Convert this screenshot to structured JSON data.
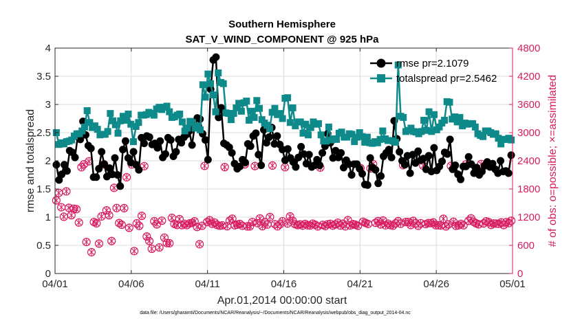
{
  "chart_data": {
    "type": "line",
    "title": "Southern Hemisphere",
    "subtitle": "SAT_V_WIND_COMPONENT @ 925 hPa",
    "xlabel": "Apr.01,2014 00:00:00 start",
    "ylabel": "rmse and totalspread",
    "ylabel_right": "# of obs: o=possible; ×=assimilated",
    "footnote": "data file: /Users/gharamti/Documents/NCAR/Reanalysis/~/Documents/NCAR/Reanalysis/webpub/obs_diag_output_2014-04.nc",
    "x_range_days": [
      0,
      30
    ],
    "x_ticks": [
      0,
      5,
      10,
      15,
      20,
      25,
      30
    ],
    "x_tick_labels": [
      "04/01",
      "04/06",
      "04/11",
      "04/16",
      "04/21",
      "04/26",
      "05/01"
    ],
    "ylim": [
      0,
      4
    ],
    "y_ticks": [
      0,
      0.5,
      1,
      1.5,
      2,
      2.5,
      3,
      3.5,
      4
    ],
    "y_tick_labels": [
      "0",
      "0.5",
      "1",
      "1.5",
      "2",
      "2.5",
      "3",
      "3.5",
      "4"
    ],
    "ylim_right": [
      0,
      4800
    ],
    "y_ticks_right": [
      0,
      600,
      1200,
      1800,
      2400,
      3000,
      3600,
      4200,
      4800
    ],
    "y_tick_labels_right": [
      "0",
      "600",
      "1200",
      "1800",
      "2400",
      "3000",
      "3600",
      "4200",
      "4800"
    ],
    "grid": true,
    "legend_position": "top-right",
    "series": [
      {
        "name": "rmse pr=2.1079",
        "color": "#000000",
        "marker": "circle",
        "axis": "left",
        "values": [
          1.93,
          1.66,
          1.76,
          1.93,
          1.82,
          2.18,
          2.15,
          2.06,
          2.43,
          2.38,
          2.7,
          2.46,
          2.27,
          2.22,
          1.71,
          1.71,
          1.86,
          2.16,
          1.94,
          1.72,
          1.87,
          1.76,
          2.05,
          1.75,
          1.55,
          2.2,
          2.35,
          2.05,
          1.97,
          2.16,
          1.93,
          1.84,
          2.41,
          2.31,
          2.44,
          2.42,
          2.29,
          2.31,
          2.23,
          2.35,
          2.06,
          2.12,
          2.41,
          2.37,
          2.08,
          2.16,
          2.38,
          2.32,
          2.42,
          2.47,
          2.53,
          2.28,
          2.61,
          2.76,
          2.74,
          2.48,
          2.37,
          2.02,
          3.27,
          3.79,
          3.84,
          2.77,
          2.94,
          2.31,
          2.28,
          2.24,
          2.14,
          1.95,
          1.86,
          1.9,
          2.02,
          1.97,
          2.3,
          2.26,
          2.44,
          2.49,
          2.11,
          1.92,
          2.55,
          2.32,
          2.42,
          2.59,
          2.3,
          2.44,
          2.29,
          2.2,
          2.01,
          2.21,
          2.05,
          1.98,
          1.89,
          2.06,
          2.25,
          2.12,
          1.95,
          2.11,
          1.89,
          1.92,
          2.02,
          1.92,
          2.14,
          2.26,
          2.48,
          2.32,
          2.05,
          2.18,
          2.06,
          2.14,
          1.88,
          2.01,
          1.94,
          1.75,
          1.94,
          1.94,
          1.86,
          1.77,
          1.58,
          1.57,
          2.05,
          1.88,
          1.84,
          1.6,
          1.73,
          2.08,
          2.14,
          2.2,
          2.06,
          2.71,
          2.39,
          2.16,
          2.0,
          1.93,
          2.09,
          1.78,
          2.11,
          1.96,
          2.17,
          2.01,
          2.04,
          1.85,
          2.09,
          1.81,
          2.23,
          1.83,
          1.9,
          1.99,
          2.15,
          2.12,
          2.38,
          1.85,
          1.92,
          1.76,
          1.67,
          1.9,
          1.9,
          2.07,
          1.94,
          1.78,
          1.88,
          1.75,
          1.81,
          1.91,
          1.98,
          1.89,
          1.95,
          1.85,
          1.78,
          2.0,
          1.81,
          1.82,
          1.78,
          2.1
        ]
      },
      {
        "name": "totalspread pr=2.5462",
        "color": "#0f8a8a",
        "marker": "square",
        "axis": "left",
        "values": [
          2.5,
          2.29,
          2.32,
          2.3,
          2.34,
          2.35,
          2.37,
          2.44,
          2.48,
          2.48,
          2.53,
          2.6,
          2.89,
          2.68,
          2.59,
          2.62,
          2.56,
          2.46,
          2.47,
          2.47,
          2.52,
          2.84,
          2.71,
          2.64,
          2.49,
          2.71,
          2.79,
          2.72,
          2.83,
          2.65,
          2.34,
          2.61,
          2.68,
          2.81,
          2.81,
          2.82,
          2.86,
          2.84,
          2.81,
          2.92,
          2.95,
          2.91,
          2.95,
          2.97,
          2.87,
          2.77,
          2.78,
          2.81,
          2.83,
          2.69,
          2.53,
          2.58,
          2.7,
          2.68,
          2.58,
          2.62,
          2.55,
          3.35,
          3.13,
          3.54,
          3.37,
          3.17,
          2.87,
          3.56,
          3.39,
          3.37,
          2.85,
          2.84,
          2.73,
          2.84,
          2.94,
          3.02,
          2.88,
          3.03,
          3.06,
          2.72,
          2.88,
          2.77,
          3.07,
          2.93,
          2.73,
          2.67,
          2.63,
          2.57,
          2.86,
          2.93,
          2.82,
          2.84,
          2.75,
          3.11,
          3.12,
          2.68,
          2.94,
          2.62,
          2.69,
          2.69,
          2.49,
          2.65,
          2.46,
          2.59,
          2.69,
          2.65,
          2.66,
          2.46,
          2.35,
          2.35,
          2.6,
          2.37,
          2.39,
          2.38,
          2.49,
          2.51,
          2.42,
          2.42,
          2.48,
          2.47,
          2.34,
          2.42,
          2.5,
          2.43,
          2.33,
          2.42,
          2.32,
          2.31,
          2.34,
          2.32,
          2.38,
          2.53,
          2.39,
          2.36,
          2.36,
          2.35,
          2.33,
          3.7,
          2.79,
          2.77,
          2.52,
          2.54,
          2.58,
          2.52,
          2.51,
          2.48,
          2.52,
          2.72,
          2.54,
          2.87,
          2.52,
          2.82,
          2.55,
          2.6,
          2.67,
          2.72,
          3.05,
          3.04,
          2.74,
          2.78,
          2.69,
          2.77,
          2.62,
          2.67,
          2.65,
          2.66,
          2.66,
          2.6,
          2.48,
          2.45,
          2.43,
          2.53,
          2.53,
          2.5,
          2.47,
          2.48,
          2.4,
          2.3,
          2.38,
          2.38,
          2.4,
          2.37
        ]
      },
      {
        "name": "possible",
        "color": "#d81b60",
        "marker": "circle-open",
        "axis": "right",
        "values": [
          1557,
          1716,
          1411,
          1209,
          1750,
          1399,
          1241,
          1380,
          1371,
          1086,
          2263,
          2326,
          671,
          2390,
          454,
          1096,
          1070,
          637,
          1216,
          2325,
          1345,
          1241,
          692,
          1824,
          1395,
          1074,
          1039,
          1392,
          2049,
          973,
          2322,
          478,
          1068,
          1014,
          1227,
          2286,
          788,
          692,
          526,
          1112,
          1046,
          555,
          1124,
          764,
          648,
          644,
          1185,
          1056,
          1034,
          1158,
          1029,
          1058,
          1031,
          1067,
          1078,
          1111,
          991,
          624,
          1016,
          2291,
          1097,
          1134,
          1059,
          1086,
          1034,
          1018,
          1025,
          2266,
          1007,
          1126,
          1167,
          1028,
          1041,
          1055,
          1018,
          2325,
          1004,
          1004,
          1097,
          2288,
          1072,
          1173,
          1007,
          1094,
          1043,
          1204,
          2299,
          1051,
          1005,
          1049,
          1113,
          2264,
          1065,
          1216,
          1124,
          1051,
          1030,
          1047,
          1019,
          1056,
          1027,
          1023,
          1062,
          1040,
          1004,
          2256,
          1035,
          1010,
          1049,
          1058,
          1020,
          1046,
          1082,
          1022,
          1061,
          1005,
          1136,
          1024,
          1052,
          1039,
          1017,
          2245,
          1102,
          1078,
          1054,
          2239,
          2332,
          1080,
          1116,
          1046,
          1129,
          1027,
          1062,
          1029,
          1019,
          1068,
          1114,
          1060,
          2307,
          1096,
          1097,
          1033,
          1121,
          1069,
          1017,
          1070,
          2294,
          1052,
          1075,
          1073,
          1088,
          1028,
          1028,
          1023,
          1165,
          1004,
          1047,
          2292,
          1101,
          1016,
          1026,
          1058,
          1027,
          2326,
          1121,
          1175,
          1102,
          1068,
          1048,
          2330,
          1066,
          1111,
          1095,
          1035,
          1065,
          1063,
          1058,
          1088,
          1030,
          1092,
          1072,
          1124
        ]
      },
      {
        "name": "assimilated",
        "color": "#d81b60",
        "marker": "cross",
        "axis": "right",
        "values": [
          1557,
          1716,
          1411,
          1209,
          1750,
          1399,
          1241,
          1380,
          1371,
          1086,
          2263,
          2326,
          671,
          2390,
          454,
          1096,
          1070,
          637,
          1216,
          2325,
          1345,
          1241,
          692,
          1824,
          1395,
          1074,
          1039,
          1392,
          2049,
          973,
          2322,
          478,
          1068,
          1014,
          1227,
          2286,
          788,
          692,
          526,
          1112,
          1046,
          555,
          1124,
          764,
          648,
          644,
          1185,
          1056,
          1034,
          1158,
          1029,
          1058,
          1031,
          1067,
          1078,
          1111,
          991,
          624,
          1016,
          2291,
          1097,
          1134,
          1059,
          1086,
          1034,
          1018,
          1025,
          2266,
          1007,
          1126,
          1167,
          1028,
          1041,
          1055,
          1018,
          2325,
          1004,
          1004,
          1097,
          2288,
          1072,
          1173,
          1007,
          1094,
          1043,
          1204,
          2299,
          1051,
          1005,
          1049,
          1113,
          2264,
          1065,
          1216,
          1124,
          1051,
          1030,
          1047,
          1019,
          1056,
          1027,
          1023,
          1062,
          1040,
          1004,
          2256,
          1035,
          1010,
          1049,
          1058,
          1020,
          1046,
          1082,
          1022,
          1061,
          1005,
          1136,
          1024,
          1052,
          1039,
          1017,
          2245,
          1102,
          1078,
          1054,
          2239,
          2332,
          1080,
          1116,
          1046,
          1129,
          1027,
          1062,
          1029,
          1019,
          1068,
          1114,
          1060,
          2307,
          1096,
          1097,
          1033,
          1121,
          1069,
          1017,
          1070,
          2294,
          1052,
          1075,
          1073,
          1088,
          1028,
          1028,
          1023,
          1165,
          1004,
          1047,
          2292,
          1101,
          1016,
          1026,
          1058,
          1027,
          2326,
          1121,
          1175,
          1102,
          1068,
          1048,
          2330,
          1066,
          1111,
          1095,
          1035,
          1065,
          1063,
          1058,
          1088,
          1030,
          1092,
          1072,
          1124
        ]
      }
    ]
  }
}
